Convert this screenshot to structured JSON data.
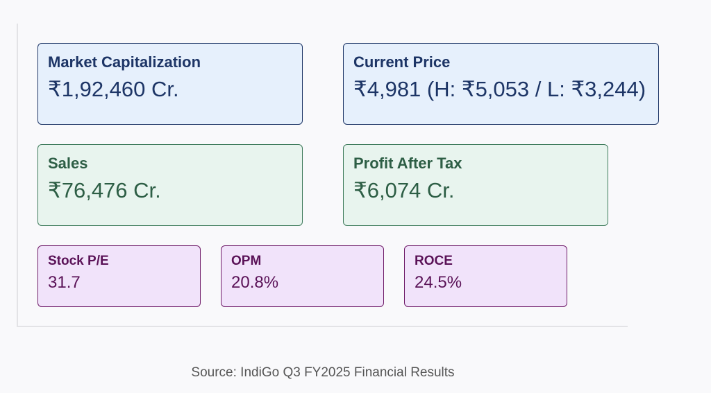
{
  "metrics": {
    "market_cap": {
      "label": "Market Capitalization",
      "value": "₹1,92,460 Cr."
    },
    "current_price": {
      "label": "Current Price",
      "value": "₹4,981 (H: ₹5,053 / L: ₹3,244)"
    },
    "sales": {
      "label": "Sales",
      "value": "₹76,476 Cr."
    },
    "profit_after_tax": {
      "label": "Profit After Tax",
      "value": "₹6,074 Cr."
    },
    "stock_pe": {
      "label": "Stock P/E",
      "value": "31.7"
    },
    "opm": {
      "label": "OPM",
      "value": "20.8%"
    },
    "roce": {
      "label": "ROCE",
      "value": "24.5%"
    }
  },
  "source": "Source: IndiGo Q3 FY2025 Financial Results",
  "colors": {
    "blue_bg": "#e6f0fc",
    "blue_text": "#1d3566",
    "green_bg": "#e8f4ee",
    "green_text": "#2d5e45",
    "purple_bg": "#f1e3fa",
    "purple_text": "#5a1257"
  }
}
